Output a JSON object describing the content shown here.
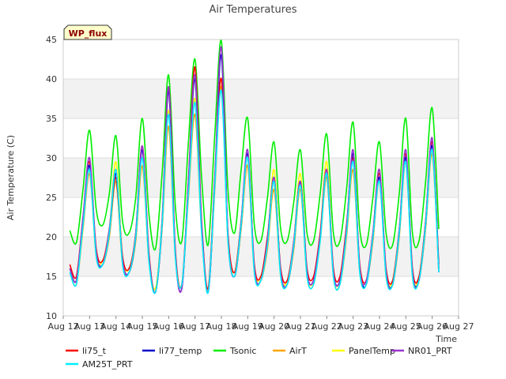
{
  "chart_data": {
    "type": "line",
    "title": "Air Temperatures",
    "xlabel": "Time",
    "ylabel": "Air Temperature (C)",
    "badge": "WP_flux",
    "xlim": [
      12,
      27
    ],
    "ylim": [
      10,
      45
    ],
    "x_ticks": [
      "Aug 12",
      "Aug 13",
      "Aug 14",
      "Aug 15",
      "Aug 16",
      "Aug 17",
      "Aug 18",
      "Aug 19",
      "Aug 20",
      "Aug 21",
      "Aug 22",
      "Aug 23",
      "Aug 24",
      "Aug 25",
      "Aug 26",
      "Aug 27"
    ],
    "y_ticks": [
      10,
      15,
      20,
      25,
      30,
      35,
      40,
      45
    ],
    "grid": true,
    "bands": true,
    "legend_position": "bottom",
    "series": [
      {
        "name": "li75_t",
        "color": "#ff0000",
        "x": [
          12.25,
          12.5,
          12.75,
          13.0,
          13.25,
          13.5,
          13.75,
          14.0,
          14.25,
          14.5,
          14.75,
          15.0,
          15.25,
          15.5,
          15.75,
          16.0,
          16.25,
          16.5,
          16.75,
          17.0,
          17.25,
          17.5,
          17.75,
          18.0,
          18.25,
          18.5,
          18.75,
          19.0,
          19.25,
          19.5,
          19.75,
          20.0,
          20.25,
          20.5,
          20.75,
          21.0,
          21.25,
          21.5,
          21.75,
          22.0,
          22.25,
          22.5,
          22.75,
          23.0,
          23.25,
          23.5,
          23.75,
          24.0,
          24.25,
          24.5,
          24.75,
          25.0,
          25.25,
          25.5,
          25.75,
          26.0,
          26.25
        ],
        "y": [
          16.5,
          15.0,
          22.5,
          29.5,
          18.5,
          17.0,
          21.0,
          27.5,
          17.5,
          16.0,
          20.5,
          31.5,
          18.0,
          13.0,
          22.0,
          39.0,
          18.5,
          14.0,
          27.0,
          41.5,
          22.0,
          13.5,
          27.5,
          40.0,
          20.5,
          15.5,
          22.0,
          30.5,
          16.5,
          15.0,
          20.0,
          27.0,
          16.0,
          14.5,
          19.5,
          27.0,
          16.0,
          15.0,
          20.5,
          28.5,
          16.0,
          15.0,
          21.5,
          30.0,
          16.5,
          14.5,
          20.5,
          28.0,
          16.0,
          14.5,
          21.0,
          30.5,
          16.0,
          15.0,
          22.0,
          32.0,
          16.5
        ]
      },
      {
        "name": "li77_temp",
        "color": "#0000cc",
        "x": [
          12.25,
          12.5,
          12.75,
          13.0,
          13.25,
          13.5,
          13.75,
          14.0,
          14.25,
          14.5,
          14.75,
          15.0,
          15.25,
          15.5,
          15.75,
          16.0,
          16.25,
          16.5,
          16.75,
          17.0,
          17.25,
          17.5,
          17.75,
          18.0,
          18.25,
          18.5,
          18.75,
          19.0,
          19.25,
          19.5,
          19.75,
          20.0,
          20.25,
          20.5,
          20.75,
          21.0,
          21.25,
          21.5,
          21.75,
          22.0,
          22.25,
          22.5,
          22.75,
          23.0,
          23.25,
          23.5,
          23.75,
          24.0,
          24.25,
          24.5,
          24.75,
          25.0,
          25.25,
          25.5,
          25.75,
          26.0,
          26.25
        ],
        "y": [
          16.0,
          14.5,
          22.0,
          29.0,
          18.0,
          16.5,
          20.5,
          28.0,
          17.0,
          15.5,
          20.0,
          31.0,
          17.5,
          13.0,
          21.5,
          38.5,
          18.0,
          13.5,
          26.5,
          40.0,
          21.5,
          13.0,
          27.0,
          43.0,
          20.0,
          15.0,
          21.5,
          30.5,
          16.0,
          14.5,
          19.5,
          27.5,
          15.5,
          14.0,
          19.0,
          27.0,
          15.5,
          14.5,
          20.0,
          28.0,
          15.5,
          14.5,
          21.0,
          30.5,
          16.0,
          14.0,
          20.0,
          27.5,
          15.5,
          14.0,
          20.5,
          30.0,
          15.5,
          14.5,
          21.5,
          31.5,
          16.0
        ]
      },
      {
        "name": "Tsonic",
        "color": "#00ee00",
        "x": [
          12.25,
          12.5,
          12.75,
          13.0,
          13.25,
          13.5,
          13.75,
          14.0,
          14.25,
          14.5,
          14.75,
          15.0,
          15.25,
          15.5,
          15.75,
          16.0,
          16.25,
          16.5,
          16.75,
          17.0,
          17.25,
          17.5,
          17.75,
          18.0,
          18.25,
          18.5,
          18.75,
          19.0,
          19.25,
          19.5,
          19.75,
          20.0,
          20.25,
          20.5,
          20.75,
          21.0,
          21.25,
          21.5,
          21.75,
          22.0,
          22.25,
          22.5,
          22.75,
          23.0,
          23.25,
          23.5,
          23.75,
          24.0,
          24.25,
          24.5,
          24.75,
          25.0,
          25.25,
          25.5,
          25.75,
          26.0,
          26.25
        ],
        "y": [
          20.8,
          19.3,
          26.0,
          33.5,
          23.5,
          21.5,
          25.5,
          32.8,
          22.0,
          20.5,
          25.0,
          35.0,
          23.0,
          18.5,
          28.0,
          40.5,
          24.0,
          19.5,
          32.0,
          42.5,
          27.5,
          19.0,
          33.0,
          44.8,
          26.0,
          20.5,
          28.5,
          35.0,
          21.5,
          19.5,
          25.0,
          32.0,
          21.0,
          19.5,
          24.5,
          31.0,
          20.5,
          19.5,
          25.5,
          33.0,
          20.5,
          19.5,
          26.0,
          34.5,
          21.0,
          19.0,
          25.0,
          32.0,
          20.5,
          19.0,
          25.5,
          35.0,
          20.5,
          19.5,
          27.0,
          36.3,
          21.0
        ]
      },
      {
        "name": "AirT",
        "color": "#ffa500",
        "x": [
          12.25,
          12.5,
          12.75,
          13.0,
          13.25,
          13.5,
          13.75,
          14.0,
          14.25,
          14.5,
          14.75,
          15.0,
          15.25,
          15.5,
          15.75,
          16.0,
          16.25,
          16.5,
          16.75,
          17.0,
          17.25,
          17.5,
          17.75,
          18.0,
          18.25,
          18.5,
          18.75,
          19.0,
          19.25,
          19.5,
          19.75,
          20.0,
          20.25,
          20.5,
          20.75,
          21.0,
          21.25,
          21.5,
          21.75,
          22.0,
          22.25,
          22.5,
          22.75,
          23.0,
          23.25,
          23.5,
          23.75,
          24.0,
          24.25,
          24.5,
          24.75,
          25.0,
          25.25,
          25.5,
          25.75,
          26.0,
          26.25
        ],
        "y": [
          15.5,
          14.0,
          21.0,
          28.0,
          17.5,
          16.5,
          20.0,
          27.0,
          16.5,
          15.5,
          19.5,
          29.0,
          17.0,
          13.0,
          21.0,
          34.0,
          17.5,
          14.0,
          25.0,
          35.5,
          20.5,
          13.0,
          26.0,
          39.0,
          19.5,
          15.0,
          21.0,
          29.0,
          15.5,
          14.5,
          18.5,
          26.0,
          15.0,
          14.0,
          18.5,
          26.0,
          15.0,
          14.0,
          19.5,
          27.5,
          15.0,
          14.0,
          20.0,
          28.5,
          15.5,
          14.0,
          19.5,
          27.0,
          15.0,
          14.0,
          20.0,
          29.5,
          15.0,
          14.5,
          21.0,
          30.5,
          15.5
        ]
      },
      {
        "name": "PanelTemp",
        "color": "#ffff00",
        "x": [
          12.25,
          12.5,
          12.75,
          13.0,
          13.25,
          13.5,
          13.75,
          14.0,
          14.25,
          14.5,
          14.75,
          15.0,
          15.25,
          15.5,
          15.75,
          16.0,
          16.25,
          16.5,
          16.75,
          17.0,
          17.25,
          17.5,
          17.75,
          18.0,
          18.25,
          18.5,
          18.75,
          19.0,
          19.25,
          19.5,
          19.75,
          20.0,
          20.25,
          20.5,
          20.75,
          21.0,
          21.25,
          21.5,
          21.75,
          22.0,
          22.25,
          22.5,
          22.75,
          23.0,
          23.25,
          23.5,
          23.75,
          24.0,
          24.25,
          24.5,
          24.75,
          25.0,
          25.25,
          25.5,
          25.75,
          26.0,
          26.25
        ],
        "y": [
          16.0,
          14.5,
          22.0,
          29.5,
          18.0,
          17.0,
          21.0,
          29.5,
          17.5,
          16.0,
          20.5,
          31.0,
          17.5,
          13.5,
          22.0,
          36.0,
          18.0,
          14.0,
          26.0,
          37.5,
          21.0,
          13.5,
          27.0,
          40.0,
          20.0,
          15.5,
          22.0,
          30.0,
          16.0,
          15.0,
          19.5,
          28.5,
          15.5,
          14.5,
          19.5,
          28.0,
          15.5,
          14.5,
          20.5,
          29.5,
          15.5,
          14.5,
          21.0,
          30.0,
          16.0,
          14.5,
          20.5,
          28.5,
          15.5,
          14.5,
          21.0,
          30.5,
          15.5,
          15.0,
          22.0,
          32.0,
          16.0
        ]
      },
      {
        "name": "NR01_PRT",
        "color": "#9933cc",
        "x": [
          12.25,
          12.5,
          12.75,
          13.0,
          13.25,
          13.5,
          13.75,
          14.0,
          14.25,
          14.5,
          14.75,
          15.0,
          15.25,
          15.5,
          15.75,
          16.0,
          16.25,
          16.5,
          16.75,
          17.0,
          17.25,
          17.5,
          17.75,
          18.0,
          18.25,
          18.5,
          18.75,
          19.0,
          19.25,
          19.5,
          19.75,
          20.0,
          20.25,
          20.5,
          20.75,
          21.0,
          21.25,
          21.5,
          21.75,
          22.0,
          22.25,
          22.5,
          22.75,
          23.0,
          23.25,
          23.5,
          23.75,
          24.0,
          24.25,
          24.5,
          24.75,
          25.0,
          25.25,
          25.5,
          25.75,
          26.0,
          26.25
        ],
        "y": [
          16.0,
          14.5,
          22.5,
          30.0,
          18.0,
          16.5,
          21.0,
          28.5,
          17.0,
          15.5,
          20.5,
          31.5,
          17.5,
          13.0,
          22.0,
          39.0,
          18.0,
          13.5,
          27.0,
          40.5,
          21.5,
          13.0,
          27.5,
          44.0,
          20.0,
          15.0,
          22.0,
          31.0,
          16.0,
          14.5,
          19.5,
          27.5,
          15.5,
          14.0,
          19.5,
          27.0,
          15.5,
          14.5,
          20.0,
          28.5,
          15.5,
          14.5,
          21.0,
          31.0,
          16.0,
          14.5,
          20.5,
          28.5,
          15.5,
          14.0,
          21.0,
          31.0,
          15.5,
          14.5,
          22.0,
          32.5,
          15.5
        ]
      },
      {
        "name": "AM25T_PRT",
        "color": "#00eeff",
        "x": [
          12.25,
          12.5,
          12.75,
          13.0,
          13.25,
          13.5,
          13.75,
          14.0,
          14.25,
          14.5,
          14.75,
          15.0,
          15.25,
          15.5,
          15.75,
          16.0,
          16.25,
          16.5,
          16.75,
          17.0,
          17.25,
          17.5,
          17.75,
          18.0,
          18.25,
          18.5,
          18.75,
          19.0,
          19.25,
          19.5,
          19.75,
          20.0,
          20.25,
          20.5,
          20.75,
          21.0,
          21.25,
          21.5,
          21.75,
          22.0,
          22.25,
          22.5,
          22.75,
          23.0,
          23.25,
          23.5,
          23.75,
          24.0,
          24.25,
          24.5,
          24.75,
          25.0,
          25.25,
          25.5,
          25.75,
          26.0,
          26.25
        ],
        "y": [
          15.5,
          14.0,
          21.5,
          28.5,
          17.5,
          16.5,
          20.5,
          28.5,
          16.5,
          15.5,
          20.0,
          30.0,
          17.0,
          13.0,
          21.5,
          35.5,
          17.5,
          14.0,
          25.5,
          37.0,
          20.5,
          13.0,
          26.5,
          38.5,
          19.5,
          15.0,
          21.5,
          30.0,
          15.5,
          14.5,
          19.0,
          27.0,
          15.0,
          14.0,
          19.0,
          26.5,
          15.0,
          14.0,
          19.5,
          28.0,
          15.0,
          14.0,
          20.5,
          29.5,
          15.5,
          14.0,
          20.0,
          27.0,
          15.0,
          14.0,
          20.5,
          29.5,
          15.0,
          14.5,
          21.5,
          31.0,
          15.5
        ]
      }
    ]
  }
}
